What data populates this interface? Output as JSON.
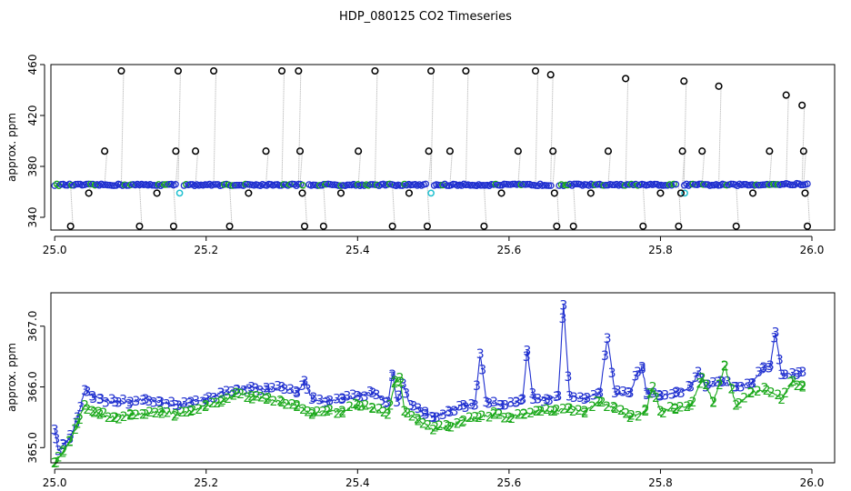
{
  "figure": {
    "title": "HDP_080125  CO2 Timeseries"
  },
  "chart_data": [
    {
      "type": "scatter",
      "panel": "top",
      "title": "HDP_080125  CO2 Timeseries",
      "xlabel": "",
      "ylabel": "approx. ppm",
      "xlim": [
        24.995,
        26.03
      ],
      "ylim": [
        330,
        460
      ],
      "xticks": [
        25.0,
        25.2,
        25.4,
        25.6,
        25.8,
        26.0
      ],
      "xtick_labels": [
        "25.0",
        "25.2",
        "25.4",
        "25.6",
        "25.8",
        "26.0"
      ],
      "yticks": [
        340,
        380,
        420,
        460
      ],
      "ytick_labels": [
        "340",
        "380",
        "420",
        "460"
      ],
      "grid": false,
      "colors": {
        "outliers": "#000000",
        "baseline": "#1f2fcf",
        "baseline_alt": "#22c0d0",
        "baseline_inner": "#1aa81a",
        "trace": "#aaaaaa"
      },
      "baseline_level": 365.5,
      "series": [
        {
          "marker": "open-circle",
          "points": [
            [
              25.002,
              365.5
            ],
            [
              25.021,
              333
            ],
            [
              25.045,
              359
            ],
            [
              25.066,
              392
            ],
            [
              25.088,
              455
            ],
            [
              25.112,
              333
            ],
            [
              25.135,
              359
            ],
            [
              25.157,
              333
            ],
            [
              25.16,
              392
            ],
            [
              25.163,
              455
            ],
            [
              25.186,
              392
            ],
            [
              25.21,
              455
            ],
            [
              25.231,
              333
            ],
            [
              25.256,
              359
            ],
            [
              25.279,
              392
            ],
            [
              25.3,
              455
            ],
            [
              25.322,
              455
            ],
            [
              25.324,
              392
            ],
            [
              25.327,
              359
            ],
            [
              25.33,
              333
            ],
            [
              25.355,
              333
            ],
            [
              25.378,
              359
            ],
            [
              25.401,
              392
            ],
            [
              25.423,
              455
            ],
            [
              25.446,
              333
            ],
            [
              25.468,
              359
            ],
            [
              25.492,
              333
            ],
            [
              25.494,
              392
            ],
            [
              25.497,
              455
            ],
            [
              25.522,
              392
            ],
            [
              25.543,
              455
            ],
            [
              25.567,
              333
            ],
            [
              25.59,
              359
            ],
            [
              25.612,
              392
            ],
            [
              25.635,
              455
            ],
            [
              25.655,
              452
            ],
            [
              25.658,
              392
            ],
            [
              25.66,
              359
            ],
            [
              25.663,
              333
            ],
            [
              25.685,
              333
            ],
            [
              25.708,
              359
            ],
            [
              25.731,
              392
            ],
            [
              25.754,
              449
            ],
            [
              25.777,
              333
            ],
            [
              25.8,
              359
            ],
            [
              25.824,
              333
            ],
            [
              25.827,
              359
            ],
            [
              25.829,
              392
            ],
            [
              25.831,
              447
            ],
            [
              25.855,
              392
            ],
            [
              25.877,
              443
            ],
            [
              25.9,
              333
            ],
            [
              25.922,
              359
            ],
            [
              25.944,
              392
            ],
            [
              25.966,
              436
            ],
            [
              25.987,
              428
            ],
            [
              25.989,
              392
            ],
            [
              25.991,
              359
            ],
            [
              25.994,
              333
            ]
          ]
        }
      ]
    },
    {
      "type": "line",
      "panel": "bottom",
      "title": "",
      "xlabel": "",
      "ylabel": "approx. ppm",
      "xlim": [
        24.995,
        26.03
      ],
      "ylim": [
        364.75,
        367.55
      ],
      "xticks": [
        25.0,
        25.2,
        25.4,
        25.6,
        25.8,
        26.0
      ],
      "xtick_labels": [
        "25.0",
        "25.2",
        "25.4",
        "25.6",
        "25.8",
        "26.0"
      ],
      "yticks": [
        365.0,
        366.0,
        367.0
      ],
      "ytick_labels": [
        "365.0",
        "366.0",
        "367.0"
      ],
      "grid": false,
      "series": [
        {
          "marker_label": "3",
          "color": "#1f2fcf",
          "knots": [
            [
              25.0,
              365.3
            ],
            [
              25.005,
              364.95
            ],
            [
              25.012,
              365.05
            ],
            [
              25.02,
              365.15
            ],
            [
              25.03,
              365.5
            ],
            [
              25.04,
              365.95
            ],
            [
              25.05,
              365.85
            ],
            [
              25.06,
              365.8
            ],
            [
              25.08,
              365.75
            ],
            [
              25.1,
              365.75
            ],
            [
              25.12,
              365.8
            ],
            [
              25.14,
              365.75
            ],
            [
              25.16,
              365.7
            ],
            [
              25.18,
              365.75
            ],
            [
              25.2,
              365.8
            ],
            [
              25.22,
              365.9
            ],
            [
              25.24,
              365.95
            ],
            [
              25.26,
              366.0
            ],
            [
              25.28,
              365.95
            ],
            [
              25.3,
              366.0
            ],
            [
              25.32,
              365.9
            ],
            [
              25.33,
              366.1
            ],
            [
              25.34,
              365.8
            ],
            [
              25.36,
              365.75
            ],
            [
              25.38,
              365.8
            ],
            [
              25.4,
              365.85
            ],
            [
              25.42,
              365.9
            ],
            [
              25.44,
              365.75
            ],
            [
              25.446,
              366.2
            ],
            [
              25.452,
              365.75
            ],
            [
              25.46,
              366.05
            ],
            [
              25.47,
              365.7
            ],
            [
              25.48,
              365.65
            ],
            [
              25.49,
              365.55
            ],
            [
              25.5,
              365.5
            ],
            [
              25.52,
              365.6
            ],
            [
              25.54,
              365.7
            ],
            [
              25.555,
              365.7
            ],
            [
              25.562,
              366.55
            ],
            [
              25.57,
              365.75
            ],
            [
              25.59,
              365.7
            ],
            [
              25.61,
              365.75
            ],
            [
              25.618,
              365.8
            ],
            [
              25.624,
              366.6
            ],
            [
              25.632,
              365.8
            ],
            [
              25.65,
              365.8
            ],
            [
              25.665,
              365.85
            ],
            [
              25.672,
              367.35
            ],
            [
              25.68,
              365.85
            ],
            [
              25.7,
              365.8
            ],
            [
              25.72,
              365.9
            ],
            [
              25.73,
              366.8
            ],
            [
              25.74,
              365.9
            ],
            [
              25.76,
              365.9
            ],
            [
              25.77,
              366.25
            ],
            [
              25.776,
              366.3
            ],
            [
              25.782,
              365.9
            ],
            [
              25.8,
              365.85
            ],
            [
              25.82,
              365.9
            ],
            [
              25.84,
              366.0
            ],
            [
              25.85,
              366.25
            ],
            [
              25.86,
              366.0
            ],
            [
              25.88,
              366.1
            ],
            [
              25.9,
              366.0
            ],
            [
              25.92,
              366.05
            ],
            [
              25.935,
              366.3
            ],
            [
              25.945,
              366.35
            ],
            [
              25.952,
              366.9
            ],
            [
              25.96,
              366.2
            ],
            [
              25.98,
              366.2
            ],
            [
              25.988,
              366.25
            ]
          ]
        },
        {
          "marker_label": "2",
          "color": "#1aa81a",
          "knots": [
            [
              25.0,
              364.75
            ],
            [
              25.005,
              364.85
            ],
            [
              25.012,
              364.95
            ],
            [
              25.02,
              365.1
            ],
            [
              25.03,
              365.4
            ],
            [
              25.04,
              365.7
            ],
            [
              25.05,
              365.6
            ],
            [
              25.06,
              365.55
            ],
            [
              25.08,
              365.5
            ],
            [
              25.1,
              365.55
            ],
            [
              25.12,
              365.55
            ],
            [
              25.14,
              365.6
            ],
            [
              25.16,
              365.55
            ],
            [
              25.18,
              365.6
            ],
            [
              25.2,
              365.7
            ],
            [
              25.22,
              365.75
            ],
            [
              25.24,
              365.9
            ],
            [
              25.26,
              365.85
            ],
            [
              25.28,
              365.8
            ],
            [
              25.3,
              365.75
            ],
            [
              25.32,
              365.7
            ],
            [
              25.34,
              365.55
            ],
            [
              25.36,
              365.6
            ],
            [
              25.38,
              365.6
            ],
            [
              25.4,
              365.7
            ],
            [
              25.42,
              365.65
            ],
            [
              25.44,
              365.55
            ],
            [
              25.45,
              366.1
            ],
            [
              25.456,
              366.15
            ],
            [
              25.462,
              365.6
            ],
            [
              25.48,
              365.45
            ],
            [
              25.5,
              365.3
            ],
            [
              25.52,
              365.35
            ],
            [
              25.54,
              365.45
            ],
            [
              25.56,
              365.5
            ],
            [
              25.58,
              365.55
            ],
            [
              25.6,
              365.5
            ],
            [
              25.62,
              365.55
            ],
            [
              25.64,
              365.6
            ],
            [
              25.66,
              365.6
            ],
            [
              25.68,
              365.65
            ],
            [
              25.7,
              365.6
            ],
            [
              25.72,
              365.75
            ],
            [
              25.74,
              365.65
            ],
            [
              25.76,
              365.5
            ],
            [
              25.78,
              365.6
            ],
            [
              25.79,
              366.0
            ],
            [
              25.8,
              365.6
            ],
            [
              25.82,
              365.65
            ],
            [
              25.84,
              365.7
            ],
            [
              25.855,
              366.15
            ],
            [
              25.87,
              365.75
            ],
            [
              25.885,
              366.35
            ],
            [
              25.9,
              365.7
            ],
            [
              25.92,
              365.9
            ],
            [
              25.94,
              365.95
            ],
            [
              25.96,
              365.8
            ],
            [
              25.975,
              366.1
            ],
            [
              25.988,
              366.0
            ]
          ]
        }
      ]
    }
  ]
}
